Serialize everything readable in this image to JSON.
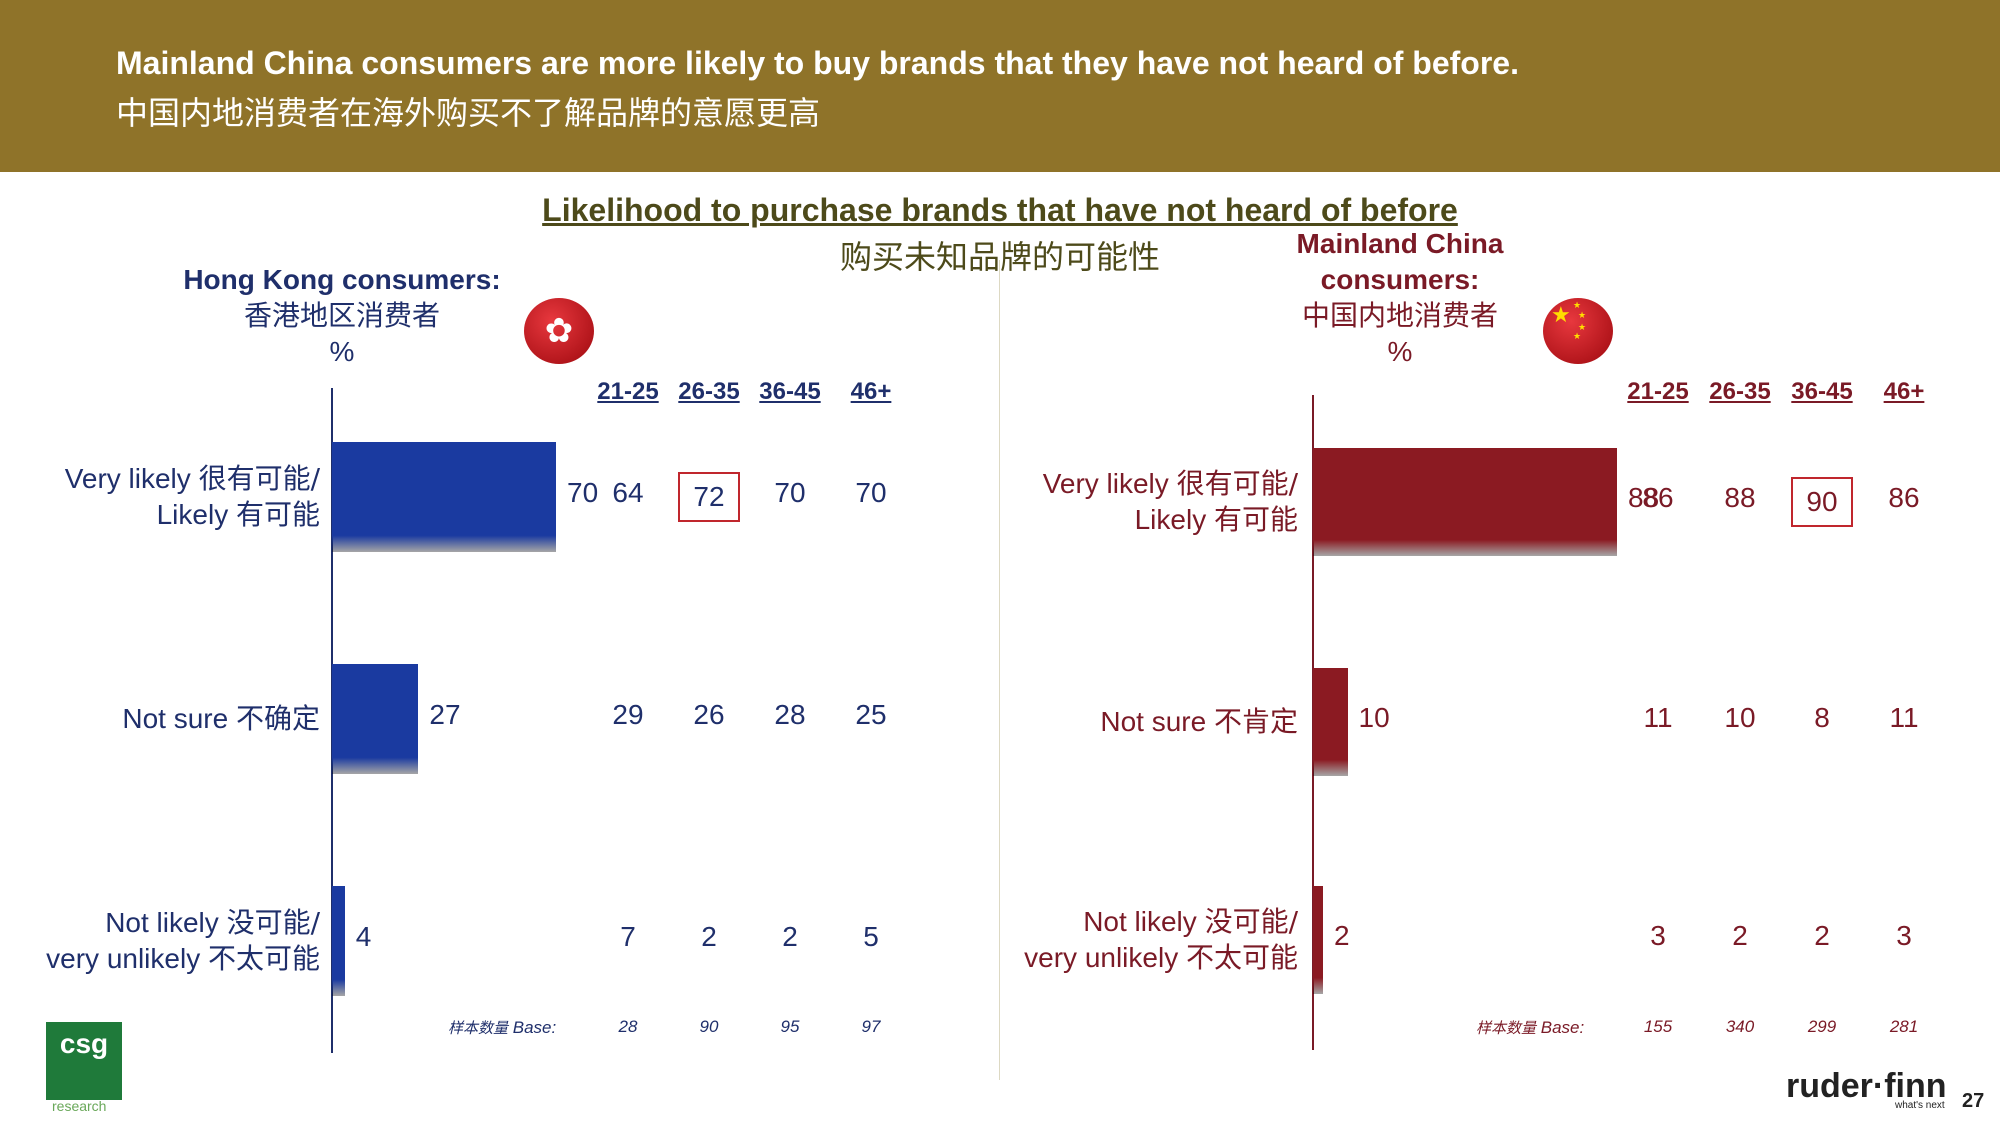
{
  "header": {
    "title_en": "Mainland China consumers are more likely to buy brands that they have not heard of before.",
    "title_zh": "中国内地消费者在海外购买不了解品牌的意愿更高"
  },
  "chart_title": {
    "en": "Likelihood to purchase brands that have not heard of before",
    "zh": "购买未知品牌的可能性"
  },
  "colors": {
    "header_bg": "#8f7329",
    "hk_blue": "#1a3aa0",
    "hk_text": "#1f2f6b",
    "cn_red": "#8b1a22",
    "cn_text": "#7a1a26",
    "highlight_box": "#c0262d"
  },
  "chart_data": [
    {
      "type": "bar",
      "panel": "hk",
      "heading_en": "Hong Kong consumers:",
      "heading_zh": "香港地区消费者",
      "unit": "%",
      "categories": [
        {
          "en": "Very likely",
          "zh": "很有可能/",
          "en2": "Likely",
          "zh2": "有可能"
        },
        {
          "en": "Not sure",
          "zh": "不确定"
        },
        {
          "en": "Not likely",
          "zh": "没可能/",
          "en2": "very unlikely",
          "zh2": "不太可能"
        }
      ],
      "values": [
        70,
        27,
        4
      ],
      "age_groups": [
        "21-25",
        "26-35",
        "36-45",
        "46+"
      ],
      "age_values": [
        [
          64,
          72,
          70,
          70
        ],
        [
          29,
          26,
          28,
          25
        ],
        [
          7,
          2,
          2,
          5
        ]
      ],
      "highlight": {
        "row": 0,
        "col": 1
      },
      "base_label_zh": "样本数量",
      "base_label_en": "Base:",
      "base": [
        28,
        90,
        95,
        97
      ],
      "xlim": [
        0,
        100
      ]
    },
    {
      "type": "bar",
      "panel": "cn",
      "heading_en_1": "Mainland China",
      "heading_en_2": "consumers:",
      "heading_zh": "中国内地消费者",
      "unit": "%",
      "categories": [
        {
          "en": "Very likely",
          "zh": "很有可能/",
          "en2": "Likely",
          "zh2": "有可能"
        },
        {
          "en": "Not sure",
          "zh": "不肯定"
        },
        {
          "en": "Not likely",
          "zh": "没可能/",
          "en2": "very unlikely",
          "zh2": "不太可能"
        }
      ],
      "values": [
        88,
        10,
        2
      ],
      "age_groups": [
        "21-25",
        "26-35",
        "36-45",
        "46+"
      ],
      "age_values": [
        [
          86,
          88,
          90,
          86
        ],
        [
          11,
          10,
          8,
          11
        ],
        [
          3,
          2,
          2,
          3
        ]
      ],
      "highlight": {
        "row": 0,
        "col": 2
      },
      "base_label_zh": "样本数量",
      "base_label_en": "Base:",
      "base": [
        155,
        340,
        299,
        281
      ],
      "xlim": [
        0,
        100
      ]
    }
  ],
  "icons": {
    "hk_flag": "hong-kong-flag-icon",
    "cn_flag": "china-flag-icon"
  },
  "footer": {
    "csg_logo": "csg",
    "csg_sub": "research",
    "rf_logo": "ruder·finn",
    "rf_tag": "what's next",
    "page_number": "27"
  }
}
